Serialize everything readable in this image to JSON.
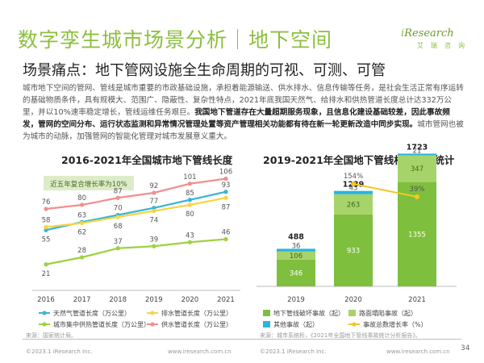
{
  "header": {
    "title": "数字孪生城市场景分析｜地下空间",
    "logo_i": "i",
    "logo_rest": "Research",
    "logo_sub": "艾瑞咨询"
  },
  "subtitle": "场景痛点：地下管网设施全生命周期的可视、可测、可管",
  "body": {
    "part1": "城市地下空间的管网、管线是城市重要的市政基础设施，承担着能源输送、供水排水、信息传输等任务，是社会生活正常有序运转的基础物质条件，具有规模大、范围广、隐蔽性、复杂性特点，2021年底我国天然气、给排水和供热管道长度总计达332万公里，并以10%速率稳定增长，管线运维任务艰巨。",
    "bold": "我国地下管道存在大量超期服务现象，且信息化建设基础较差，因此事故频发，管网的空间分布、运行状态监测和异常情况管理处置等资产管理相关功能都有待在新一轮更新改造中同步实现。",
    "part2": "城市管网也被为城市的动脉，加强管网的智能化管理对城市发展意义重大。"
  },
  "left_chart_title": "2016-2021年全国城市地下管线长度",
  "right_chart_title": "2019-2021年全国地下管线相关事故统计",
  "source_left": "来源：国家统计局。",
  "source_right": "来源：城市系统析，《2021年全国地下管线事故统计分析报告》。",
  "footer": {
    "copyright1": "©2023.1 iResearch Inc.",
    "url1": "www.iresearch.com.cn",
    "copyright2": "©2023.1 iResearch Inc.",
    "url2": "www.iresearch.com.cn",
    "page": "34"
  },
  "chart_data": [
    {
      "type": "line",
      "title": "2016-2021年全国城市地下管线长度",
      "annotation": "近五年复合增长率为10%",
      "x": [
        "2016",
        "2017",
        "2018",
        "2019",
        "2020",
        "2021"
      ],
      "series": [
        {
          "name": "天然气管道长度（万公里）",
          "color": "#3cb4d8",
          "values": [
            55,
            63,
            70,
            77,
            85,
            93
          ]
        },
        {
          "name": "排水管道长度（万公里）",
          "color": "#f7d443",
          "values": [
            58,
            62,
            68,
            74,
            80,
            87
          ]
        },
        {
          "name": "城市集中供热管道长度（万公里）",
          "color": "#9fd13f",
          "values": [
            21,
            28,
            37,
            39,
            43,
            46
          ]
        },
        {
          "name": "供水管道长度（万公里）",
          "color": "#f0908f",
          "values": [
            76,
            80,
            87,
            92,
            101,
            106
          ]
        }
      ],
      "ylim": [
        0,
        115
      ],
      "grid": false,
      "legend": "bottom"
    },
    {
      "type": "bar",
      "title": "2019-2021年全国地下管线相关事故统计",
      "categories": [
        "2019",
        "2020",
        "2021"
      ],
      "stacked": true,
      "series": [
        {
          "name": "地下管线破坏事故（起）",
          "color": "#7fbf3e",
          "values": [
            346,
            933,
            1355
          ]
        },
        {
          "name": "路面塌陷事故（起）",
          "color": "#a7d36b",
          "values": [
            106,
            263,
            347
          ]
        },
        {
          "name": "其他事故（起）",
          "color": "#2ab4e0",
          "values": [
            36,
            43,
            21
          ]
        }
      ],
      "totals": [
        488,
        1239,
        1723
      ],
      "line_series": {
        "name": "事故总数增长率（%）",
        "color": "#f5c623",
        "labels": [
          "",
          "154%",
          "39%"
        ],
        "values": [
          null,
          154,
          39
        ]
      },
      "ylim": [
        0,
        1900
      ],
      "legend": "bottom"
    }
  ]
}
